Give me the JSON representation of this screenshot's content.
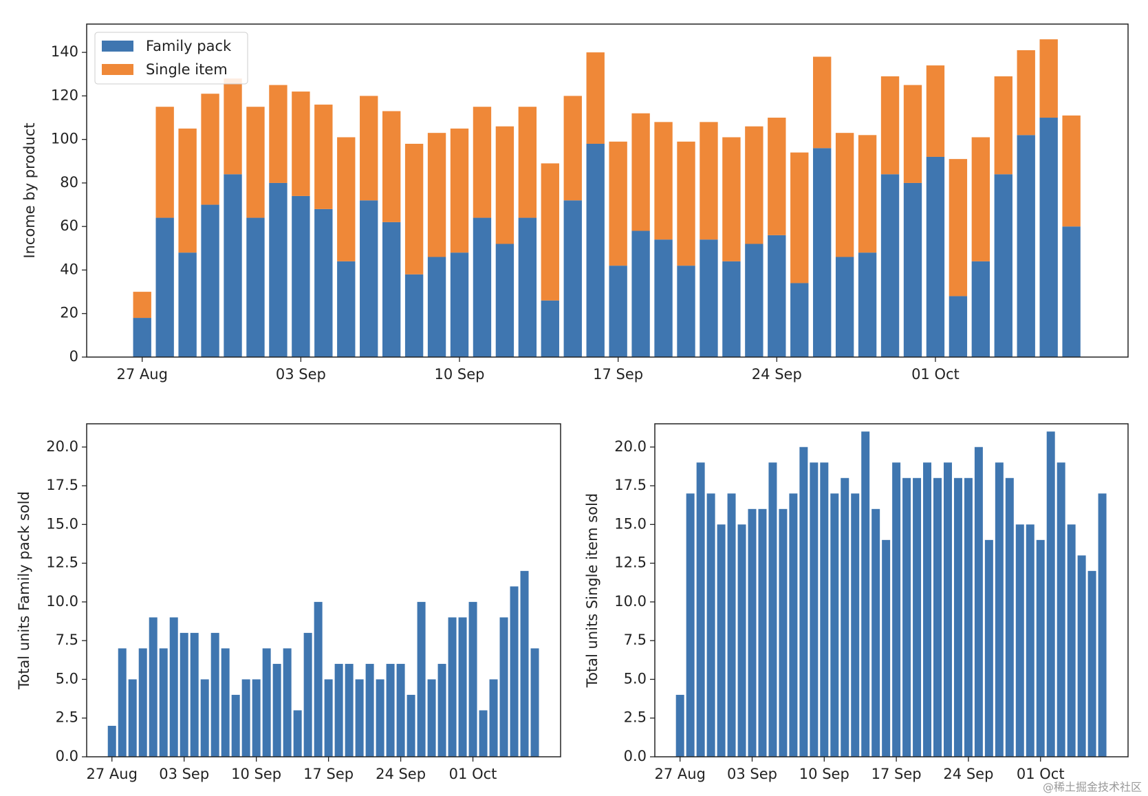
{
  "chart_data": [
    {
      "type": "bar",
      "stacked": true,
      "ylabel": "Income by product",
      "legend": "upper left",
      "categories": [
        "27 Aug",
        null,
        null,
        null,
        null,
        null,
        null,
        "03 Sep",
        null,
        null,
        null,
        null,
        null,
        null,
        "10 Sep",
        null,
        null,
        null,
        null,
        null,
        null,
        "17 Sep",
        null,
        null,
        null,
        null,
        null,
        null,
        "24 Sep",
        null,
        null,
        null,
        null,
        null,
        null,
        "01 Oct",
        null,
        null,
        null,
        null,
        null,
        null
      ],
      "series": [
        {
          "name": "Family pack",
          "color": "#3f76b0",
          "values": [
            18,
            64,
            48,
            70,
            84,
            64,
            80,
            74,
            68,
            44,
            72,
            62,
            38,
            46,
            48,
            64,
            52,
            64,
            26,
            72,
            98,
            42,
            58,
            54,
            42,
            54,
            44,
            52,
            56,
            34,
            96,
            46,
            48,
            84,
            80,
            92,
            28,
            44,
            84,
            102,
            110,
            60
          ]
        },
        {
          "name": "Single item",
          "color": "#ef8838",
          "values": [
            12,
            51,
            57,
            51,
            44,
            51,
            45,
            48,
            48,
            57,
            48,
            51,
            60,
            57,
            57,
            51,
            54,
            51,
            63,
            48,
            42,
            57,
            54,
            54,
            57,
            54,
            57,
            54,
            54,
            60,
            42,
            57,
            54,
            45,
            45,
            42,
            63,
            57,
            45,
            39,
            36,
            51
          ]
        }
      ],
      "ylim": [
        0,
        153
      ],
      "yticks": [
        0,
        20,
        40,
        60,
        80,
        100,
        120,
        140
      ]
    },
    {
      "type": "bar",
      "ylabel": "Total units Family pack sold",
      "color": "#3f76b0",
      "categories": [
        "27 Aug",
        null,
        null,
        null,
        null,
        null,
        null,
        "03 Sep",
        null,
        null,
        null,
        null,
        null,
        null,
        "10 Sep",
        null,
        null,
        null,
        null,
        null,
        null,
        "17 Sep",
        null,
        null,
        null,
        null,
        null,
        null,
        "24 Sep",
        null,
        null,
        null,
        null,
        null,
        null,
        "01 Oct",
        null,
        null,
        null,
        null,
        null,
        null
      ],
      "values": [
        2,
        7,
        5,
        7,
        9,
        7,
        9,
        8,
        8,
        5,
        8,
        7,
        4,
        5,
        5,
        7,
        6,
        7,
        3,
        8,
        10,
        5,
        6,
        6,
        5,
        6,
        5,
        6,
        6,
        4,
        10,
        5,
        6,
        9,
        9,
        10,
        3,
        5,
        9,
        11,
        12,
        7
      ],
      "ylim": [
        0,
        21.5
      ],
      "yticks": [
        {
          "value": 0,
          "label": "0.0"
        },
        2.5,
        {
          "value": 5,
          "label": "5.0"
        },
        7.5,
        {
          "value": 10,
          "label": "10.0"
        },
        12.5,
        {
          "value": 15,
          "label": "15.0"
        },
        17.5,
        {
          "value": 20,
          "label": "20.0"
        }
      ]
    },
    {
      "type": "bar",
      "ylabel": "Total units Single item sold",
      "color": "#3f76b0",
      "categories": [
        "27 Aug",
        null,
        null,
        null,
        null,
        null,
        null,
        "03 Sep",
        null,
        null,
        null,
        null,
        null,
        null,
        "10 Sep",
        null,
        null,
        null,
        null,
        null,
        null,
        "17 Sep",
        null,
        null,
        null,
        null,
        null,
        null,
        "24 Sep",
        null,
        null,
        null,
        null,
        null,
        null,
        "01 Oct",
        null,
        null,
        null,
        null,
        null,
        null
      ],
      "values": [
        4,
        17,
        19,
        17,
        15,
        17,
        15,
        16,
        16,
        19,
        16,
        17,
        20,
        19,
        19,
        17,
        18,
        17,
        21,
        16,
        14,
        19,
        18,
        18,
        19,
        18,
        19,
        18,
        18,
        20,
        14,
        19,
        18,
        15,
        15,
        14,
        21,
        19,
        15,
        13,
        12,
        17
      ],
      "ylim": [
        0,
        21.5
      ],
      "yticks": [
        {
          "value": 0,
          "label": "0.0"
        },
        2.5,
        {
          "value": 5,
          "label": "5.0"
        },
        7.5,
        {
          "value": 10,
          "label": "10.0"
        },
        12.5,
        {
          "value": 15,
          "label": "15.0"
        },
        17.5,
        {
          "value": 20,
          "label": "20.0"
        }
      ]
    }
  ],
  "watermark": "@稀土掘金技术社区"
}
